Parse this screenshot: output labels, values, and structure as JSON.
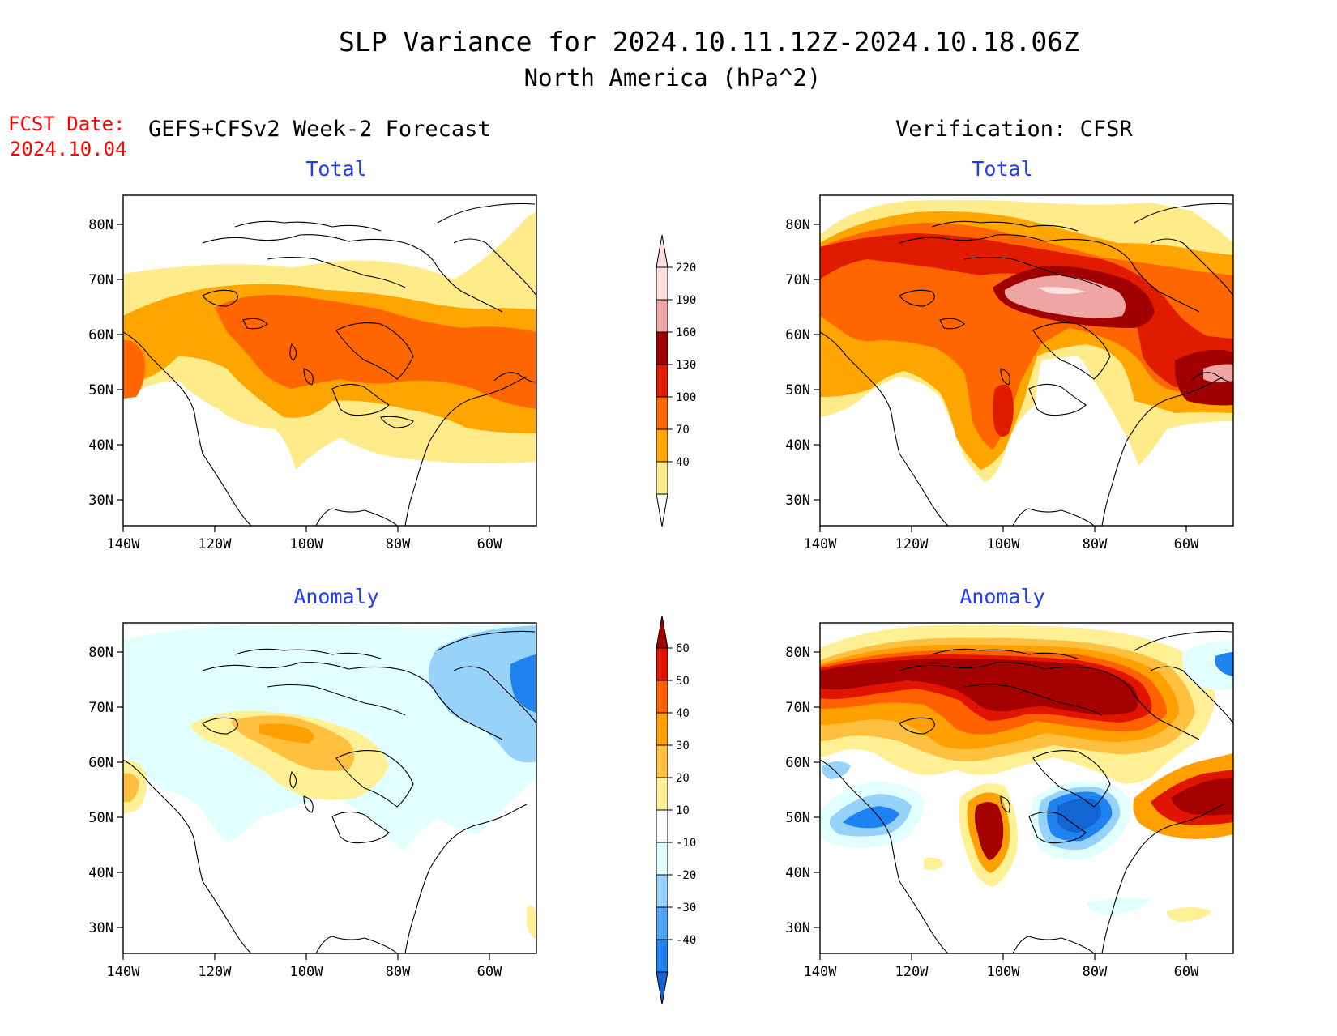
{
  "title_line1": "SLP Variance for 2024.10.11.12Z-2024.10.18.06Z",
  "title_line2": "North America (hPa^2)",
  "fcst_label": "FCST Date:",
  "fcst_date": "2024.10.04",
  "left_header": "GEFS+CFSv2 Week-2 Forecast",
  "right_header": "Verification: CFSR",
  "panel_titles": {
    "top_left": "Total",
    "top_right": "Total",
    "bottom_left": "Anomaly",
    "bottom_right": "Anomaly"
  },
  "axes": {
    "lat_labels": [
      "80N",
      "70N",
      "60N",
      "50N",
      "40N",
      "30N"
    ],
    "lon_labels": [
      "140W",
      "120W",
      "100W",
      "80W",
      "60W"
    ]
  },
  "colors": {
    "title": "#000000",
    "fcst": "#ff0000",
    "panel_title": "#1e3cff"
  },
  "colorbars": {
    "total": {
      "levels": [
        "40",
        "70",
        "100",
        "130",
        "160",
        "190",
        "220"
      ],
      "colors": [
        "#ffffff",
        "#ffeb8a",
        "#ffa500",
        "#ff6600",
        "#e01b00",
        "#a00000",
        "#f0a5a5",
        "#ffe0e0"
      ]
    },
    "anomaly": {
      "levels": [
        "-40",
        "-30",
        "-20",
        "-10",
        "10",
        "20",
        "30",
        "40",
        "50",
        "60"
      ],
      "colors": [
        "#1464d2",
        "#1e82f0",
        "#50a5f5",
        "#96d2fa",
        "#e1ffff",
        "#ffffff",
        "#fff096",
        "#ffc040",
        "#ffa000",
        "#ff6000",
        "#e11400",
        "#a50000"
      ]
    }
  }
}
